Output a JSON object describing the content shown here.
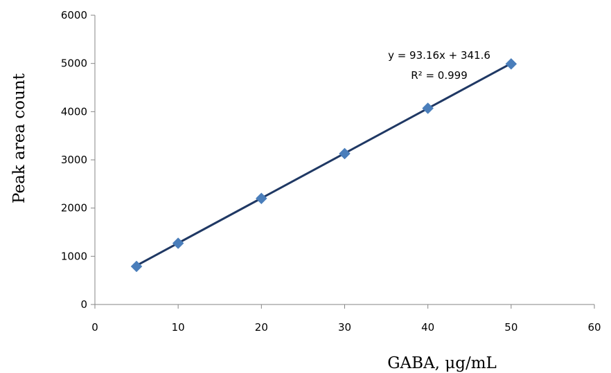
{
  "chart_data": {
    "type": "scatter",
    "xlabel": "GABA, μg/mL",
    "ylabel": "Peak area count",
    "xlim": [
      0,
      60
    ],
    "ylim": [
      0,
      6000
    ],
    "xticks": [
      0,
      10,
      20,
      30,
      40,
      50,
      60
    ],
    "yticks": [
      0,
      1000,
      2000,
      3000,
      4000,
      5000,
      6000
    ],
    "grid": false,
    "series": [
      {
        "marker": "diamond",
        "color": "#4a7ebb",
        "x": [
          5,
          10,
          20,
          30,
          40,
          50
        ],
        "y": [
          790,
          1270,
          2200,
          3130,
          4070,
          4990
        ]
      }
    ],
    "trendline": {
      "slope": 93.16,
      "intercept": 341.6,
      "color": "#1f3864",
      "equation_text": "y = 93.16x + 341.6",
      "r2_text": "R² = 0.999"
    }
  }
}
